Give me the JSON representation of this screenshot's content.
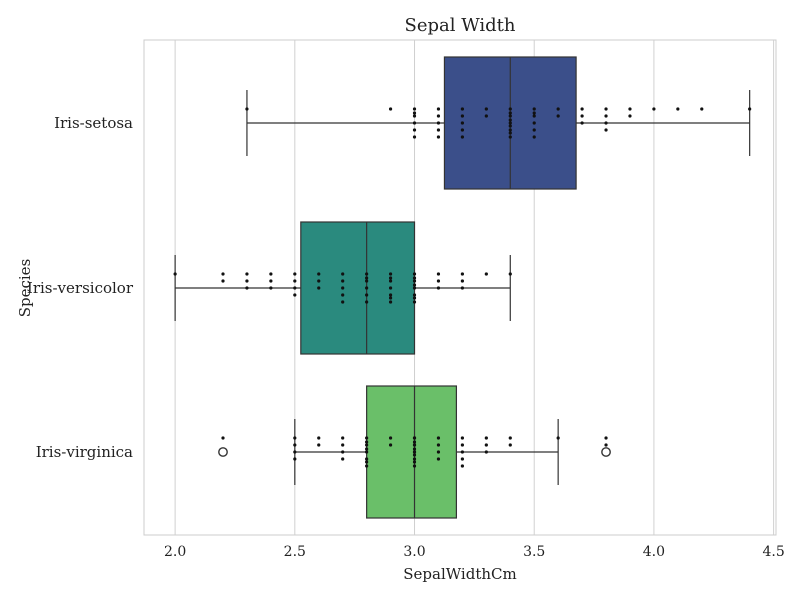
{
  "chart_data": {
    "type": "boxplot",
    "orientation": "horizontal",
    "title": "Sepal Width",
    "xlabel": "SepalWidthCm",
    "ylabel": "Species",
    "xlim": [
      1.87,
      4.51
    ],
    "xticks": [
      2.0,
      2.5,
      3.0,
      3.5,
      4.0,
      4.5
    ],
    "xtick_labels": [
      "2.0",
      "2.5",
      "3.0",
      "3.5",
      "4.0",
      "4.5"
    ],
    "grid": "vertical",
    "categories": [
      "Iris-setosa",
      "Iris-versicolor",
      "Iris-virginica"
    ],
    "boxes": [
      {
        "name": "Iris-setosa",
        "color": "#3b4f8a",
        "whisker_low": 2.3,
        "q1": 3.125,
        "median": 3.4,
        "q3": 3.675,
        "whisker_high": 4.4,
        "outliers": []
      },
      {
        "name": "Iris-versicolor",
        "color": "#2a8a7e",
        "whisker_low": 2.0,
        "q1": 2.525,
        "median": 2.8,
        "q3": 3.0,
        "whisker_high": 3.4,
        "outliers": []
      },
      {
        "name": "Iris-virginica",
        "color": "#6abf69",
        "whisker_low": 2.5,
        "q1": 2.8,
        "median": 3.0,
        "q3": 3.175,
        "whisker_high": 3.6,
        "outliers": [
          2.2,
          3.8
        ]
      }
    ],
    "points": [
      [
        3.5,
        3.0,
        3.2,
        3.1,
        3.6,
        3.9,
        3.4,
        3.4,
        2.9,
        3.1,
        3.7,
        3.4,
        3.0,
        3.0,
        4.0,
        4.4,
        3.9,
        3.5,
        3.8,
        3.8,
        3.4,
        3.7,
        3.6,
        3.3,
        3.4,
        3.0,
        3.4,
        3.5,
        3.4,
        3.2,
        3.1,
        3.4,
        4.1,
        4.2,
        3.1,
        3.2,
        3.5,
        3.1,
        3.0,
        3.4,
        3.5,
        2.3,
        3.2,
        3.5,
        3.8,
        3.0,
        3.8,
        3.2,
        3.7,
        3.3
      ],
      [
        3.2,
        3.2,
        3.1,
        2.3,
        2.8,
        2.8,
        3.3,
        2.4,
        2.9,
        2.7,
        2.0,
        3.0,
        2.2,
        2.9,
        2.9,
        3.1,
        3.0,
        2.7,
        2.2,
        2.5,
        3.2,
        2.8,
        2.5,
        2.8,
        2.9,
        3.0,
        2.8,
        3.0,
        2.9,
        2.6,
        2.4,
        2.4,
        2.7,
        2.7,
        3.0,
        3.4,
        3.1,
        2.3,
        3.0,
        2.5,
        2.6,
        3.0,
        2.6,
        2.3,
        2.7,
        3.0,
        2.9,
        2.9,
        2.5,
        2.8
      ],
      [
        3.3,
        2.7,
        3.0,
        2.9,
        3.0,
        3.0,
        2.5,
        2.9,
        2.5,
        3.6,
        3.2,
        2.7,
        3.0,
        2.5,
        2.8,
        3.2,
        3.0,
        3.8,
        2.6,
        2.2,
        3.2,
        2.8,
        2.8,
        2.7,
        3.3,
        3.2,
        2.8,
        3.0,
        2.8,
        3.0,
        2.8,
        3.8,
        2.8,
        2.8,
        2.6,
        3.0,
        3.4,
        3.1,
        3.0,
        3.1,
        3.1,
        3.1,
        2.7,
        3.2,
        3.3,
        3.0,
        2.5,
        3.0,
        3.4,
        3.0
      ]
    ]
  }
}
